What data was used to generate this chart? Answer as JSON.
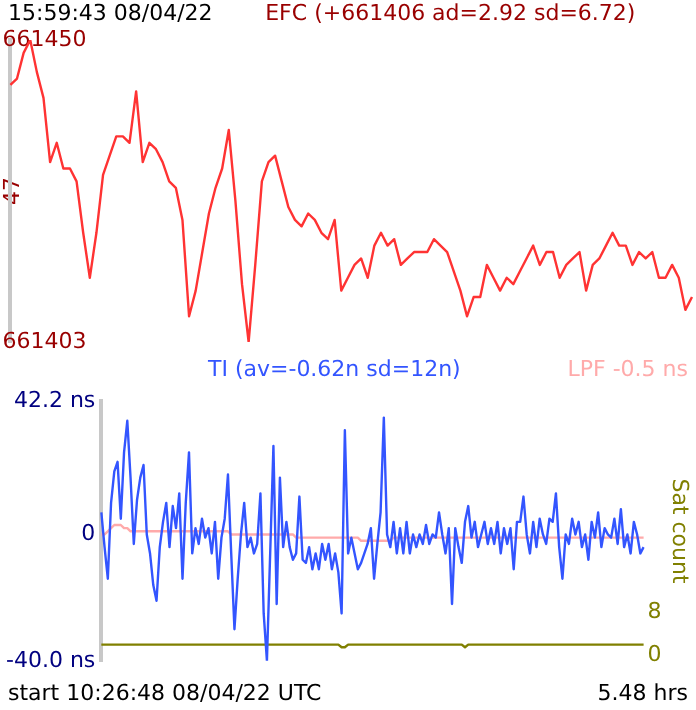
{
  "chart_data": [
    {
      "type": "line",
      "title": "EFC (+661406 ad=2.92 sd=6.72)",
      "ylabel": "47",
      "annotations": [
        "15:59:43 08/04/22"
      ],
      "tick_labels": "y",
      "legend": false,
      "grid": false,
      "marker": "none",
      "categories": [
        null,
        null,
        null,
        null,
        null,
        null,
        null,
        null,
        null,
        null,
        null,
        null,
        null,
        null,
        null,
        null,
        null,
        null,
        null,
        null,
        null,
        null,
        null,
        null,
        null,
        null,
        null,
        null,
        null,
        null,
        null,
        null,
        null,
        null,
        null,
        null,
        null,
        null,
        null,
        null,
        null,
        null,
        null,
        null,
        null,
        null,
        null,
        null,
        null,
        null,
        null,
        null,
        null,
        null,
        null,
        null,
        null,
        null,
        null,
        null,
        null,
        null,
        null,
        null,
        null,
        null,
        null,
        null,
        null,
        null,
        null,
        null,
        null,
        null,
        null,
        null,
        null,
        null,
        null,
        null,
        null,
        null,
        null,
        null,
        null,
        null,
        null,
        null,
        null,
        null,
        null,
        null,
        null,
        null,
        null,
        null,
        null,
        null,
        null,
        null,
        null,
        null,
        null,
        null
      ],
      "ylim": [
        661403,
        661450
      ],
      "yticks": [
        661403,
        661450
      ],
      "series": [
        {
          "color": "#ff3333",
          "values": [
            661443,
            661444,
            661448,
            661450,
            661445,
            661441,
            661431,
            661434,
            661430,
            661430,
            661428,
            661420,
            661413,
            661420,
            661429,
            661432,
            661435,
            661435,
            661434,
            661442,
            661431,
            661434,
            661433,
            661431,
            661428,
            661427,
            661422,
            661407,
            661411,
            661417,
            661423,
            661427,
            661430,
            661436,
            661425,
            661412,
            661403,
            661415,
            661428,
            661431,
            661432,
            661428,
            661424,
            661422,
            661421,
            661423,
            661422,
            661420,
            661419,
            661422,
            661411,
            661413,
            661415,
            661416,
            661413,
            661418,
            661420,
            661418,
            661419,
            661415,
            661416,
            661417,
            661417,
            661417,
            661419,
            661418,
            661417,
            661414,
            661411,
            661407,
            661410,
            661410,
            661415,
            661413,
            661411,
            661413,
            661412,
            661414,
            661416,
            661418,
            661415,
            661417,
            661417,
            661413,
            661415,
            661416,
            661417,
            661411,
            661415,
            661416,
            661418,
            661420,
            661418,
            661418,
            661415,
            661417,
            661416,
            661417,
            661413,
            661413,
            661415,
            661413,
            661408,
            661410
          ]
        }
      ]
    },
    {
      "type": "line",
      "annotations": [
        "start 10:26:48 08/04/22 UTC",
        "5.48 hrs"
      ],
      "y2label": "Sat count",
      "tick_labels": "y",
      "legend": false,
      "grid": false,
      "marker": "none",
      "categories": [
        null,
        null,
        null,
        null,
        null,
        null,
        null,
        null,
        null,
        null,
        null,
        null,
        null,
        null,
        null,
        null,
        null,
        null,
        null,
        null,
        null,
        null,
        null,
        null,
        null,
        null,
        null,
        null,
        null,
        null,
        null,
        null,
        null,
        null,
        null,
        null,
        null,
        null,
        null,
        null,
        null,
        null,
        null,
        null,
        null,
        null,
        null,
        null,
        null,
        null,
        null,
        null,
        null,
        null,
        null,
        null,
        null,
        null,
        null,
        null,
        null,
        null,
        null,
        null,
        null,
        null,
        null,
        null,
        null,
        null,
        null,
        null,
        null,
        null,
        null,
        null,
        null,
        null,
        null,
        null,
        null,
        null,
        null,
        null,
        null,
        null,
        null,
        null,
        null,
        null,
        null,
        null,
        null,
        null,
        null,
        null,
        null,
        null,
        null,
        null,
        null,
        null,
        null,
        null,
        null,
        null,
        null,
        null,
        null,
        null,
        null,
        null,
        null,
        null,
        null,
        null,
        null,
        null,
        null,
        null,
        null,
        null,
        null,
        null,
        null,
        null,
        null,
        null,
        null,
        null,
        null,
        null,
        null,
        null,
        null,
        null,
        null,
        null,
        null,
        null,
        null,
        null,
        null,
        null,
        null,
        null,
        null,
        null,
        null,
        null,
        null,
        null,
        null,
        null,
        null,
        null,
        null,
        null,
        null,
        null,
        null,
        null,
        null,
        null,
        null,
        null,
        null,
        null
      ],
      "ylim": [
        -40,
        42.2
      ],
      "yticks": [
        {
          "value": 42.2,
          "label": "42.2 ns"
        },
        0,
        {
          "value": -40,
          "label": "-40.0 ns"
        }
      ],
      "y2lim": [
        -1,
        47
      ],
      "y2ticks": [
        0,
        8
      ],
      "series": [
        {
          "name": "TI (av=-0.62n sd=12n)",
          "color": "#3355ff",
          "values": [
            7,
            -4,
            -14,
            10,
            20,
            23,
            5,
            26,
            36,
            18,
            -3,
            11,
            18,
            22,
            0,
            -6,
            -16,
            -21,
            -4,
            4,
            10,
            -4,
            9,
            2,
            13,
            -14,
            10,
            26,
            -6,
            2,
            -3,
            5,
            -1,
            2,
            -6,
            4,
            -14,
            -1,
            5,
            19,
            -6,
            -30,
            -14,
            0,
            10,
            -4,
            -1,
            -6,
            -3,
            13,
            -25,
            -40,
            -6,
            28,
            -22,
            18,
            -4,
            4,
            -4,
            -8,
            -6,
            12,
            -8,
            -9,
            -4,
            -11,
            -6,
            -11,
            -3,
            -8,
            -3,
            -11,
            -6,
            -12,
            -25,
            33,
            -6,
            -1,
            -6,
            -11,
            -9,
            -6,
            -3,
            2,
            -14,
            -3,
            7,
            37,
            0,
            -4,
            4,
            -6,
            2,
            -6,
            4,
            -6,
            0,
            -4,
            0,
            -3,
            3,
            -3,
            0,
            -1,
            7,
            0,
            -6,
            2,
            -22,
            2,
            -4,
            -9,
            4,
            9,
            -1,
            4,
            -4,
            0,
            4,
            -3,
            2,
            -3,
            4,
            -6,
            2,
            -3,
            2,
            -11,
            4,
            4,
            12,
            0,
            -6,
            4,
            -4,
            5,
            0,
            -3,
            5,
            4,
            13,
            -4,
            -14,
            0,
            -3,
            5,
            0,
            4,
            -4,
            0,
            -8,
            4,
            -1,
            7,
            -4,
            2,
            0,
            -1,
            5,
            -3,
            8,
            -4,
            0,
            -6,
            4,
            0,
            -6,
            -4
          ]
        },
        {
          "name": "LPF -0.5 ns",
          "color": "#ffaaaa",
          "values": [
            0,
            0,
            1,
            2,
            3,
            3,
            3,
            2,
            2,
            1,
            1,
            1,
            1,
            1,
            1,
            1,
            1,
            1,
            1,
            1,
            1,
            1,
            1,
            1,
            1,
            1,
            1,
            1,
            1,
            1,
            1,
            1,
            1,
            1,
            1,
            1,
            1,
            1,
            1,
            1,
            0,
            0,
            0,
            0,
            0,
            0,
            0,
            0,
            0,
            0,
            0,
            0,
            0,
            0,
            0,
            0,
            0,
            0,
            0,
            0,
            -1,
            -1,
            -1,
            -1,
            -1,
            -1,
            -1,
            -1,
            -1,
            -1,
            -1,
            -1,
            -1,
            -1,
            -1,
            -1,
            -1,
            -1,
            -1,
            -1,
            -2,
            -2,
            -2,
            -2,
            -2,
            -2,
            -2,
            -2,
            -2,
            -2,
            -1,
            -1,
            -1,
            -1,
            -1,
            -1,
            -1,
            -1,
            -1,
            -1,
            -1,
            -1,
            -1,
            -1,
            -1,
            -1,
            -1,
            -1,
            -1,
            -1,
            -1,
            -1,
            -1,
            -1,
            -1,
            -1,
            -1,
            -1,
            -1,
            -1,
            -1,
            -1,
            -1,
            -1,
            -1,
            -1,
            -1,
            -1,
            -1,
            -1,
            -1,
            -1,
            -1,
            -1,
            -1,
            -1,
            -1,
            -1,
            -1,
            -1,
            -1,
            -1,
            -1,
            -1,
            -1,
            -1,
            -1,
            -1,
            -1,
            -1,
            -1,
            -1,
            -1,
            -1,
            -1,
            -1,
            -1,
            -1,
            -1,
            -1,
            -1,
            -1,
            -1,
            -1,
            -1,
            -1,
            -1,
            -1
          ]
        },
        {
          "color": "#808000",
          "axis": "y2",
          "values": [
            2,
            2,
            2,
            2,
            2,
            2,
            2,
            2,
            2,
            2,
            2,
            2,
            2,
            2,
            2,
            2,
            2,
            2,
            2,
            2,
            2,
            2,
            2,
            2,
            2,
            2,
            2,
            2,
            2,
            2,
            2,
            2,
            2,
            2,
            2,
            2,
            2,
            2,
            2,
            2,
            2,
            2,
            2,
            2,
            2,
            2,
            2,
            2,
            2,
            2,
            2,
            2,
            2,
            2,
            2,
            2,
            2,
            2,
            2,
            2,
            2,
            2,
            2,
            2,
            2,
            2,
            2,
            2,
            2,
            2,
            2,
            2,
            2,
            2,
            1.5,
            1.5,
            2,
            2,
            2,
            2,
            2,
            2,
            2,
            2,
            2,
            2,
            2,
            2,
            2,
            2,
            2,
            2,
            2,
            2,
            2,
            2,
            2,
            2,
            2,
            2,
            2,
            2,
            2,
            2,
            2,
            2,
            2,
            2,
            2,
            2,
            2,
            2,
            1.5,
            2,
            2,
            2,
            2,
            2,
            2,
            2,
            2,
            2,
            2,
            2,
            2,
            2,
            2,
            2,
            2,
            2,
            2,
            2,
            2,
            2,
            2,
            2,
            2,
            2,
            2,
            2,
            2,
            2,
            2,
            2,
            2,
            2,
            2,
            2,
            2,
            2,
            2,
            2,
            2,
            2,
            2,
            2,
            2,
            2,
            2,
            2,
            2,
            2,
            2,
            2,
            2,
            2,
            2,
            2
          ]
        }
      ]
    }
  ]
}
